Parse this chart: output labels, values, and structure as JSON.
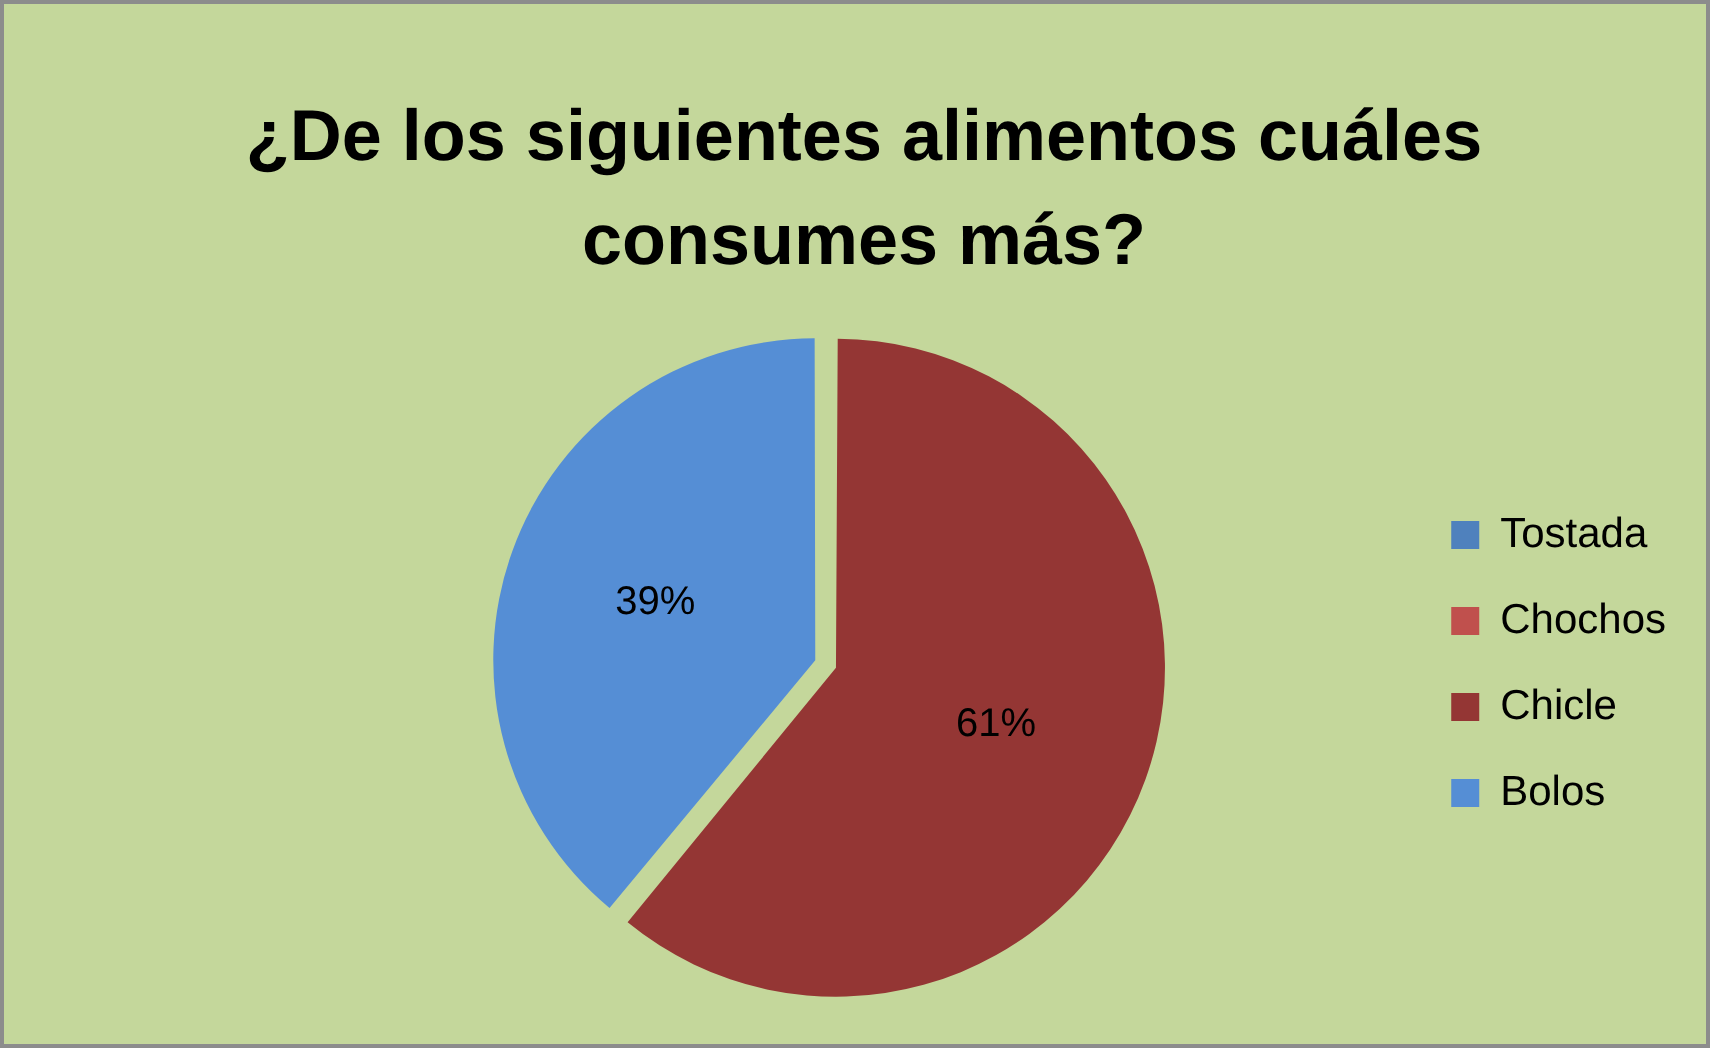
{
  "chart_data": {
    "type": "pie",
    "title": "¿De los siguientes alimentos cuáles consumes más?",
    "categories": [
      "Tostada",
      "Chochos",
      "Chicle",
      "Bolos"
    ],
    "values": [
      0,
      0,
      61,
      39
    ],
    "colors": [
      "#4f81bd",
      "#c0504d",
      "#943634",
      "#558ed5"
    ],
    "value_labels": [
      null,
      null,
      "61%",
      "39%"
    ],
    "legend": "right"
  }
}
